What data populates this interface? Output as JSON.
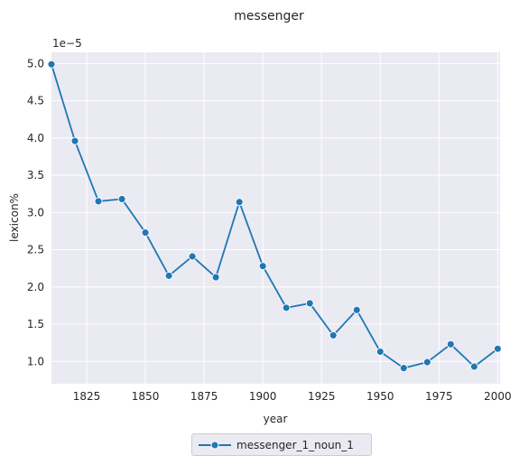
{
  "chart_data": {
    "type": "line",
    "title": "messenger",
    "xlabel": "year",
    "ylabel": "lexicon%",
    "y_scale_label": "1e−5",
    "xlim": [
      1810,
      2001
    ],
    "ylim": [
      0.7,
      5.15
    ],
    "xticks": [
      1825,
      1850,
      1875,
      1900,
      1925,
      1950,
      1975,
      2000
    ],
    "yticks": [
      1.0,
      1.5,
      2.0,
      2.5,
      3.0,
      3.5,
      4.0,
      4.5,
      5.0
    ],
    "ytick_labels": [
      "1.0",
      "1.5",
      "2.0",
      "2.5",
      "3.0",
      "3.5",
      "4.0",
      "4.5",
      "5.0"
    ],
    "grid": true,
    "legend_position": "bottom-center",
    "series": [
      {
        "name": "messenger_1_noun_1",
        "color": "#1f77b4",
        "marker": "circle",
        "x": [
          1810,
          1820,
          1830,
          1840,
          1850,
          1860,
          1870,
          1880,
          1890,
          1900,
          1910,
          1920,
          1930,
          1940,
          1950,
          1960,
          1970,
          1980,
          1990,
          2000
        ],
        "y": [
          4.99,
          3.96,
          3.15,
          3.18,
          2.73,
          2.15,
          2.41,
          2.13,
          3.14,
          2.28,
          1.72,
          1.78,
          1.35,
          1.69,
          1.13,
          0.91,
          0.99,
          1.23,
          0.93,
          1.17
        ]
      }
    ]
  }
}
